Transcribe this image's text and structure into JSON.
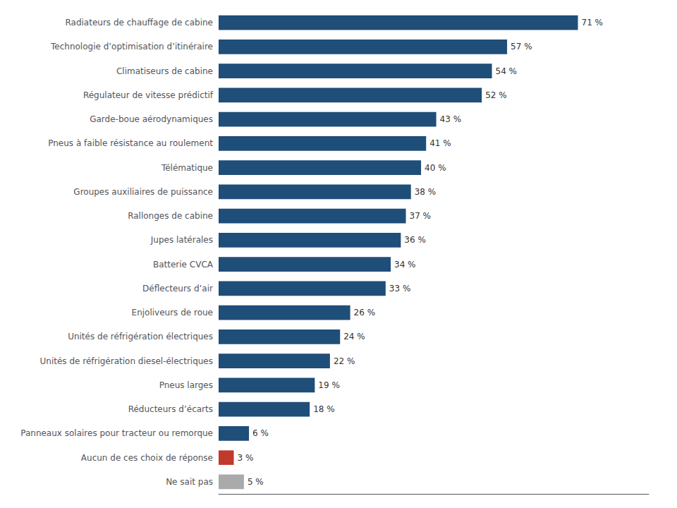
{
  "chart_data": {
    "type": "bar",
    "orientation": "horizontal",
    "categories": [
      "Ne sait pas",
      "Aucun de ces choix de réponse",
      "Panneaux solaires pour tracteur ou remorque",
      "Réducteurs d’écarts",
      "Pneus larges",
      "Unités de réfrigération diesel-électriques",
      "Unités de réfrigération électriques",
      "Enjoliveurs de roue",
      "Déflecteurs d’air",
      "Batterie CVCA",
      "Jupes latérales",
      "Rallonges de cabine",
      "Groupes auxiliaires de puissance",
      "Télématique",
      "Pneus à faible résistance au roulement",
      "Garde-boue aérodynamiques",
      "Régulateur de vitesse prédictif",
      "Climatiseurs de cabine",
      "Technologie d’optimisation d’itinéraire",
      "Radiateurs de chauffage de cabine"
    ],
    "values": [
      5,
      3,
      6,
      18,
      19,
      22,
      24,
      26,
      33,
      34,
      36,
      37,
      38,
      40,
      41,
      43,
      52,
      54,
      57,
      71
    ],
    "value_labels": [
      "5 %",
      "3 %",
      "6 %",
      "18 %",
      "19 %",
      "22 %",
      "24 %",
      "26 %",
      "33 %",
      "34 %",
      "36 %",
      "37 %",
      "38 %",
      "40 %",
      "41 %",
      "43 %",
      "52 %",
      "54 %",
      "57 %",
      "71 %"
    ],
    "colors": [
      "#aaaaaa",
      "#c0392b",
      "#1f4e79",
      "#1f4e79",
      "#1f4e79",
      "#1f4e79",
      "#1f4e79",
      "#1f4e79",
      "#1f4e79",
      "#1f4e79",
      "#1f4e79",
      "#1f4e79",
      "#1f4e79",
      "#1f4e79",
      "#1f4e79",
      "#1f4e79",
      "#1f4e79",
      "#1f4e79",
      "#1f4e79",
      "#1f4e79"
    ],
    "xlim": [
      0,
      85
    ],
    "data_labels": true,
    "tick_labels": "y",
    "grid": false
  }
}
